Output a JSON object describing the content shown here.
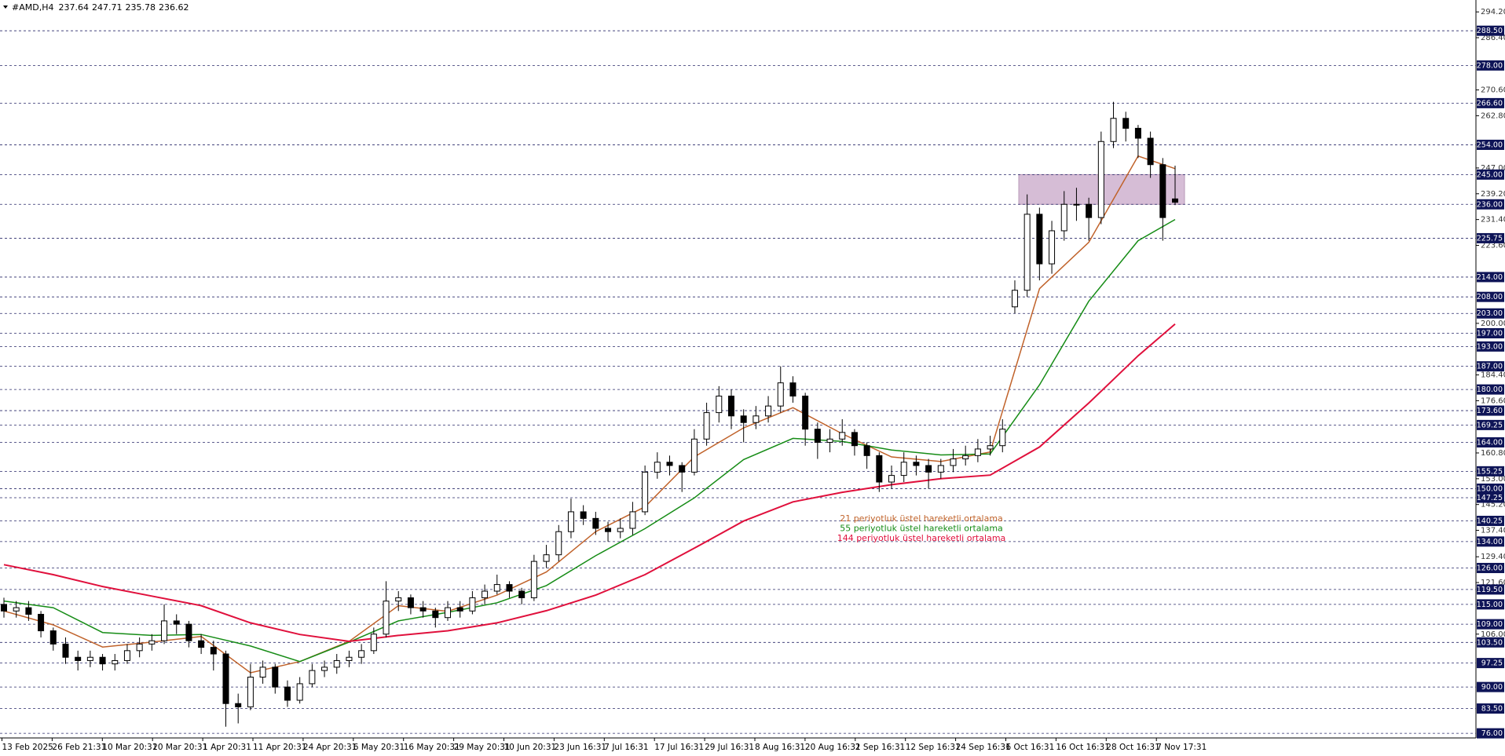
{
  "chart_data": {
    "type": "candlestick",
    "title": "#AMD,H4",
    "header_ohlc": [
      237.64,
      247.71,
      235.78,
      236.62
    ],
    "ylim": [
      74.6,
      297.8
    ],
    "yticks": [
      {
        "value": 294.2,
        "label": "294.20"
      },
      {
        "value": 286.4,
        "label": "286.40"
      },
      {
        "value": 270.6,
        "label": "270.60"
      },
      {
        "value": 262.8,
        "label": "262.80"
      },
      {
        "value": 247,
        "label": "247.00"
      },
      {
        "value": 239.2,
        "label": "239.20"
      },
      {
        "value": 231.4,
        "label": "231.40"
      },
      {
        "value": 223.6,
        "label": "223.60"
      },
      {
        "value": 200,
        "label": "200.00"
      },
      {
        "value": 184.4,
        "label": "184.40"
      },
      {
        "value": 176.6,
        "label": "176.60"
      },
      {
        "value": 160.8,
        "label": "160.80"
      },
      {
        "value": 153,
        "label": "153.00"
      },
      {
        "value": 145.2,
        "label": "145.20"
      },
      {
        "value": 137.4,
        "label": "137.40"
      },
      {
        "value": 129.4,
        "label": "129.40"
      },
      {
        "value": 121.6,
        "label": "121.60"
      },
      {
        "value": 106,
        "label": "106.00"
      }
    ],
    "levels": [
      {
        "value": 288.5,
        "label": "288.50"
      },
      {
        "value": 278,
        "label": "278.00"
      },
      {
        "value": 266.6,
        "label": "266.60"
      },
      {
        "value": 254,
        "label": "254.00"
      },
      {
        "value": 245,
        "label": "245.00"
      },
      {
        "value": 236,
        "label": "236.00"
      },
      {
        "value": 225.75,
        "label": "225.75"
      },
      {
        "value": 214,
        "label": "214.00"
      },
      {
        "value": 208,
        "label": "208.00"
      },
      {
        "value": 203,
        "label": "203.00"
      },
      {
        "value": 197,
        "label": "197.00"
      },
      {
        "value": 193,
        "label": "193.00"
      },
      {
        "value": 187,
        "label": "187.00"
      },
      {
        "value": 180,
        "label": "180.00"
      },
      {
        "value": 173.6,
        "label": "173.60"
      },
      {
        "value": 169.25,
        "label": "169.25"
      },
      {
        "value": 164,
        "label": "164.00"
      },
      {
        "value": 155.25,
        "label": "155.25"
      },
      {
        "value": 150,
        "label": "150.00"
      },
      {
        "value": 147.25,
        "label": "147.25"
      },
      {
        "value": 140.25,
        "label": "140.25"
      },
      {
        "value": 134,
        "label": "134.00"
      },
      {
        "value": 126,
        "label": "126.00"
      },
      {
        "value": 119.5,
        "label": "119.50"
      },
      {
        "value": 115,
        "label": "115.00"
      },
      {
        "value": 109,
        "label": "109.00"
      },
      {
        "value": 103.5,
        "label": "103.50"
      },
      {
        "value": 97.25,
        "label": "97.25"
      },
      {
        "value": 90,
        "label": "90.00"
      },
      {
        "value": 83.5,
        "label": "83.50"
      },
      {
        "value": 76,
        "label": "76.00"
      }
    ],
    "zone": [
      245,
      236
    ],
    "x_labels": [
      "13 Feb 2025",
      "26 Feb 21:31",
      "10 Mar 20:31",
      "20 Mar 20:31",
      "1 Apr 20:31",
      "11 Apr 20:31",
      "24 Apr 20:31",
      "6 May 20:31",
      "16 May 20:31",
      "29 May 20:31",
      "10 Jun 20:31",
      "23 Jun 16:31",
      "7 Jul 16:31",
      "17 Jul 16:31",
      "29 Jul 16:31",
      "8 Aug 16:31",
      "20 Aug 16:31",
      "2 Sep 16:31",
      "12 Sep 16:31",
      "24 Sep 16:31",
      "6 Oct 16:31",
      "16 Oct 16:31",
      "28 Oct 16:31",
      "7 Nov 17:31"
    ],
    "candles": [
      [
        115,
        117,
        111,
        113
      ],
      [
        113,
        116,
        111,
        114
      ],
      [
        114,
        116,
        110,
        112
      ],
      [
        112,
        113,
        105,
        107
      ],
      [
        107,
        108,
        101,
        103
      ],
      [
        103,
        105,
        97,
        99
      ],
      [
        99,
        101,
        95,
        98
      ],
      [
        98,
        101,
        96,
        99
      ],
      [
        99,
        100,
        95,
        97
      ],
      [
        97,
        100,
        95,
        98
      ],
      [
        98,
        103,
        97,
        101
      ],
      [
        101,
        105,
        99,
        103
      ],
      [
        103,
        106,
        101,
        104
      ],
      [
        104,
        115,
        103,
        110
      ],
      [
        110,
        112,
        106,
        109
      ],
      [
        109,
        110,
        102,
        104
      ],
      [
        104,
        106,
        100,
        102
      ],
      [
        102,
        104,
        95,
        100
      ],
      [
        100,
        101,
        78,
        85
      ],
      [
        85,
        88,
        79,
        84
      ],
      [
        84,
        97,
        83,
        93
      ],
      [
        93,
        98,
        91,
        96
      ],
      [
        96,
        97,
        88,
        90
      ],
      [
        90,
        92,
        84,
        86
      ],
      [
        86,
        93,
        85,
        91
      ],
      [
        91,
        97,
        90,
        95
      ],
      [
        95,
        98,
        93,
        96
      ],
      [
        96,
        100,
        94,
        98
      ],
      [
        98,
        101,
        96,
        99
      ],
      [
        99,
        103,
        97,
        101
      ],
      [
        101,
        108,
        100,
        106
      ],
      [
        106,
        122,
        105,
        116
      ],
      [
        116,
        119,
        113,
        117
      ],
      [
        117,
        118,
        112,
        114
      ],
      [
        114,
        116,
        111,
        113
      ],
      [
        113,
        114,
        108,
        111
      ],
      [
        111,
        116,
        110,
        114
      ],
      [
        114,
        116,
        111,
        113
      ],
      [
        113,
        119,
        112,
        117
      ],
      [
        117,
        121,
        115,
        119
      ],
      [
        119,
        124,
        118,
        121
      ],
      [
        121,
        122,
        117,
        119
      ],
      [
        119,
        120,
        115,
        117
      ],
      [
        117,
        130,
        116,
        128
      ],
      [
        128,
        133,
        126,
        130
      ],
      [
        130,
        139,
        128,
        137
      ],
      [
        137,
        147,
        135,
        143
      ],
      [
        143,
        145,
        139,
        141
      ],
      [
        141,
        143,
        136,
        138
      ],
      [
        138,
        140,
        134,
        137
      ],
      [
        137,
        141,
        135,
        138
      ],
      [
        138,
        146,
        136,
        143
      ],
      [
        143,
        157,
        142,
        155
      ],
      [
        155,
        161,
        153,
        158
      ],
      [
        158,
        160,
        154,
        157
      ],
      [
        157,
        158,
        149,
        155
      ],
      [
        155,
        168,
        154,
        165
      ],
      [
        165,
        176,
        163,
        173
      ],
      [
        173,
        181,
        170,
        178
      ],
      [
        178,
        180,
        168,
        172
      ],
      [
        172,
        174,
        164,
        170
      ],
      [
        170,
        175,
        168,
        172
      ],
      [
        172,
        178,
        170,
        175
      ],
      [
        175,
        187,
        173,
        182
      ],
      [
        182,
        184,
        176,
        178
      ],
      [
        178,
        179,
        163,
        168
      ],
      [
        168,
        170,
        159,
        164
      ],
      [
        164,
        168,
        161,
        165
      ],
      [
        165,
        171,
        163,
        167
      ],
      [
        167,
        168,
        160,
        163
      ],
      [
        163,
        164,
        156,
        160
      ],
      [
        160,
        161,
        149,
        152
      ],
      [
        152,
        157,
        150,
        154
      ],
      [
        154,
        161,
        152,
        158
      ],
      [
        158,
        160,
        154,
        157
      ],
      [
        157,
        159,
        150,
        155
      ],
      [
        155,
        159,
        153,
        157
      ],
      [
        157,
        162,
        155,
        159
      ],
      [
        159,
        163,
        157,
        160
      ],
      [
        160,
        165,
        158,
        162
      ],
      [
        162,
        166,
        160,
        163
      ],
      [
        163,
        171,
        161,
        168
      ],
      [
        205,
        213,
        203,
        210
      ],
      [
        210,
        239,
        208,
        233
      ],
      [
        233,
        235,
        213,
        218
      ],
      [
        218,
        231,
        215,
        228
      ],
      [
        228,
        240,
        225,
        236
      ],
      [
        236,
        241,
        231,
        236
      ],
      [
        236,
        238,
        225,
        232
      ],
      [
        232,
        258,
        230,
        255
      ],
      [
        255,
        267,
        253,
        262
      ],
      [
        262,
        264,
        255,
        259
      ],
      [
        259,
        260,
        250,
        256
      ],
      [
        256,
        258,
        244,
        248
      ],
      [
        248,
        250,
        225,
        232
      ],
      [
        237.64,
        247.71,
        235.78,
        236.62
      ]
    ],
    "ma_x": [
      0,
      4,
      8,
      12,
      16,
      20,
      24,
      28,
      32,
      36,
      40,
      44,
      48,
      52,
      56,
      60,
      64,
      68,
      72,
      76,
      80,
      84,
      88,
      92,
      95
    ],
    "series": [
      {
        "name": "21 periyotluk üstel hareketli ortalama",
        "color": "#c0622a",
        "values": [
          113,
          108.8,
          102.1,
          103.6,
          105.3,
          94.3,
          97.7,
          103.8,
          114.6,
          112.9,
          117.8,
          124.8,
          137,
          144.5,
          159.6,
          168.4,
          174.5,
          166.6,
          159.6,
          158.2,
          161.1,
          210.5,
          224.5,
          250.6,
          246.8
        ]
      },
      {
        "name": "55 periyotluk üstel hareketli ortalama",
        "color": "#168c16",
        "values": [
          116,
          114,
          106.5,
          105.6,
          105.9,
          102.4,
          97.7,
          103.6,
          110,
          112.6,
          115.5,
          120.7,
          129.7,
          137.9,
          147.2,
          158.8,
          165.2,
          164.3,
          161.7,
          160.2,
          160.5,
          181.4,
          206.7,
          225,
          231.4
        ]
      },
      {
        "name": "144 periyotluk üstel hareketli ortalama",
        "color": "#e0103c",
        "values": [
          127,
          124,
          120.4,
          117.5,
          114.6,
          109.4,
          105.9,
          103.8,
          105.6,
          107,
          109.4,
          113.1,
          117.8,
          124,
          132,
          140.2,
          146,
          148.9,
          151.2,
          153,
          154.1,
          162.6,
          175.9,
          190.2,
          199.8
        ]
      }
    ]
  }
}
